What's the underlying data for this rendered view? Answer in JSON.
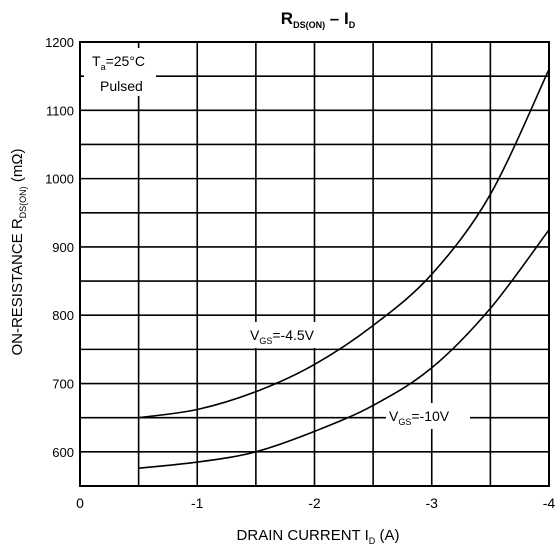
{
  "chart_data": {
    "type": "line",
    "title": "R",
    "title_sub": "DS(ON)",
    "title_dash": " – I",
    "title_sub2": "D",
    "xlabel": "DRAIN CURRENT I",
    "xlabel_sub": "D",
    "xlabel_unit": " (A)",
    "ylabel": "ON-RESISTANCE R",
    "ylabel_sub": "DS(ON)",
    "ylabel_unit": " (mΩ)",
    "xlim": [
      0,
      -4
    ],
    "ylim": [
      550,
      1200
    ],
    "x_ticks": [
      0,
      -1,
      -2,
      -3,
      -4
    ],
    "x_tick_labels": [
      "0",
      "-1",
      "-2",
      "-3",
      "-4"
    ],
    "y_ticks": [
      600,
      700,
      800,
      900,
      1000,
      1100,
      1200
    ],
    "y_tick_labels": [
      "600",
      "700",
      "800",
      "900",
      "1000",
      "1100",
      "1200"
    ],
    "grid": true,
    "x_grid_step": -0.5,
    "y_grid_step": 50,
    "conditions": {
      "line1": "T",
      "line1_sub": "a",
      "line1_rest": "=25°C",
      "line2": "Pulsed"
    },
    "series": [
      {
        "name": "V",
        "name_sub": "GS",
        "name_rest": "=-4.5V",
        "color": "#000000",
        "x": [
          -0.5,
          -1.0,
          -1.5,
          -2.0,
          -2.5,
          -3.0,
          -3.5,
          -4.0
        ],
        "y": [
          650,
          662,
          688,
          728,
          785,
          860,
          977,
          1160
        ]
      },
      {
        "name": "V",
        "name_sub": "GS",
        "name_rest": "=-10V",
        "color": "#000000",
        "x": [
          -0.5,
          -1.0,
          -1.5,
          -2.0,
          -2.5,
          -3.0,
          -3.5,
          -4.0
        ],
        "y": [
          576,
          585,
          600,
          630,
          668,
          723,
          810,
          925
        ]
      }
    ]
  }
}
